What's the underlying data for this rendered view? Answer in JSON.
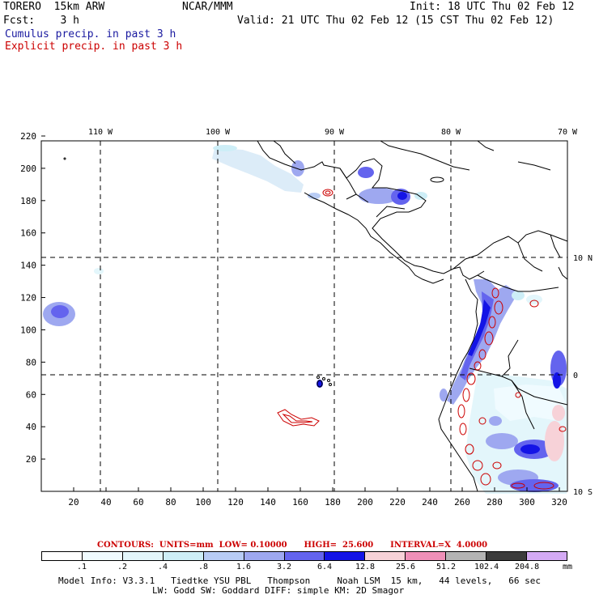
{
  "header": {
    "model": "TORERO  15km ARW",
    "org": "NCAR/MMM",
    "init": "Init: 18 UTC Thu 02 Feb 12",
    "fcst": "Fcst:    3 h",
    "valid": "Valid: 21 UTC Thu 02 Feb 12 (15 CST Thu 02 Feb 12)",
    "field1": "Cumulus precip. in past 3 h",
    "field2": "Explicit precip. in past 3 h"
  },
  "map": {
    "lon_labels": [
      "110 W",
      "100 W",
      "90 W",
      "80 W",
      "70 W"
    ],
    "lat_labels": [
      "10 N",
      "0",
      "10 S"
    ],
    "x_ticks": [
      "20",
      "40",
      "60",
      "80",
      "100",
      "120",
      "140",
      "160",
      "180",
      "200",
      "220",
      "240",
      "260",
      "280",
      "300",
      "320"
    ],
    "y_ticks": [
      "220",
      "200",
      "180",
      "160",
      "140",
      "120",
      "100",
      "80",
      "60",
      "40",
      "20"
    ]
  },
  "contours": {
    "label": "CONTOURS:  UNITS=mm  LOW= 0.10000      HIGH=  25.600      INTERVAL=X  4.0000"
  },
  "colorbar": {
    "levels": [
      ".1",
      ".2",
      ".4",
      ".8",
      "1.6",
      "3.2",
      "6.4",
      "12.8",
      "25.6",
      "51.2",
      "102.4",
      "204.8"
    ],
    "unit": "mm",
    "colors": [
      "#ffffff",
      "#f0fbff",
      "#e3f6fb",
      "#cdeef7",
      "#b8ccf5",
      "#9ea8f0",
      "#6464ee",
      "#1414e6",
      "#f7d2d8",
      "#ef90b8",
      "#b4b4b4",
      "#3c3c3c",
      "#d4aaf4"
    ]
  },
  "footer": {
    "line1": "Model Info: V3.3.1   Tiedtke YSU PBL   Thompson     Noah LSM  15 km,   44 levels,   66 sec",
    "line2": "LW: Godd SW: Goddard DIFF: simple KM: 2D Smagor"
  }
}
